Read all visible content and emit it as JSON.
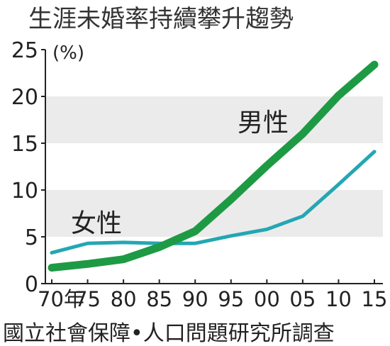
{
  "chart_data": {
    "type": "line",
    "title": "生涯未婚率持續攀升趨勢",
    "unit": "(%)",
    "x": [
      "70年",
      "75",
      "80",
      "85",
      "90",
      "95",
      "00",
      "05",
      "10",
      "15"
    ],
    "y_ticks": [
      "0",
      "5",
      "10",
      "15",
      "20",
      "25"
    ],
    "ylim": [
      0,
      25
    ],
    "grid": "alternating horizontal bands",
    "series": [
      {
        "name": "男性",
        "color": "#1e9a45",
        "values": [
          1.7,
          2.1,
          2.6,
          3.9,
          5.6,
          9.0,
          12.6,
          16.0,
          20.1,
          23.4
        ]
      },
      {
        "name": "女性",
        "color": "#23a7b3",
        "values": [
          3.3,
          4.3,
          4.4,
          4.3,
          4.3,
          5.1,
          5.8,
          7.2,
          10.6,
          14.1
        ]
      }
    ],
    "source": "國立社會保障•人口問題研究所調查"
  },
  "colors": {
    "band": "#ebebeb",
    "axis": "#222222"
  }
}
